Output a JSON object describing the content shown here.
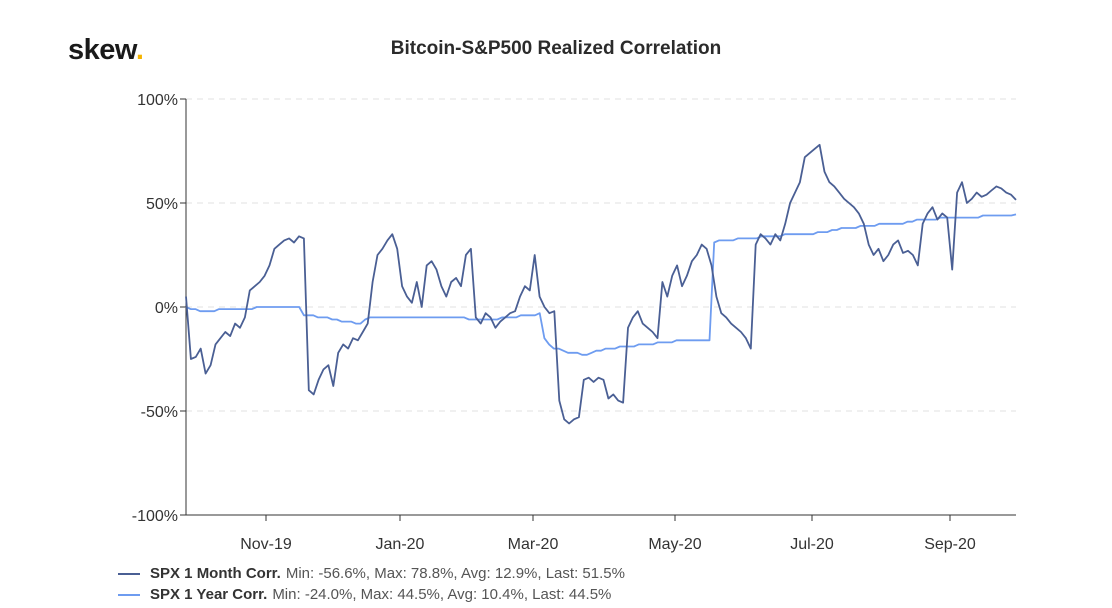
{
  "header": {
    "logo_text": "skew",
    "logo_dot": "."
  },
  "chart_data": {
    "type": "line",
    "title": "Bitcoin-S&P500 Realized Correlation",
    "ylim": [
      -100,
      100
    ],
    "y_ticks": [
      100,
      50,
      0,
      -50,
      -100
    ],
    "y_tick_labels": [
      "100%",
      "50%",
      "0%",
      "-50%",
      "-100%"
    ],
    "x_tick_labels": [
      "Nov-19",
      "Jan-20",
      "Mar-20",
      "May-20",
      "Jul-20",
      "Sep-20"
    ],
    "grid": true,
    "legend_position": "bottom-left",
    "series": [
      {
        "name": "SPX 1 Month Corr.",
        "color": "#4a5f94",
        "stats": "Min: -56.6%, Max: 78.8%, Avg: 12.9%, Last: 51.5%",
        "values": [
          5,
          -25,
          -24,
          -20,
          -32,
          -28,
          -18,
          -15,
          -12,
          -14,
          -8,
          -10,
          -5,
          8,
          10,
          12,
          15,
          20,
          28,
          30,
          32,
          33,
          31,
          34,
          33,
          -40,
          -42,
          -35,
          -30,
          -28,
          -38,
          -22,
          -18,
          -20,
          -15,
          -16,
          -12,
          -8,
          12,
          25,
          28,
          32,
          35,
          28,
          10,
          5,
          2,
          12,
          0,
          20,
          22,
          18,
          10,
          5,
          12,
          14,
          10,
          25,
          28,
          -5,
          -8,
          -3,
          -5,
          -10,
          -7,
          -5,
          -3,
          -2,
          5,
          10,
          8,
          25,
          5,
          0,
          -3,
          -2,
          -45,
          -54,
          -56,
          -54,
          -53,
          -35,
          -34,
          -36,
          -34,
          -35,
          -44,
          -42,
          -45,
          -46,
          -10,
          -5,
          -2,
          -8,
          -10,
          -12,
          -15,
          12,
          5,
          15,
          20,
          10,
          15,
          22,
          25,
          30,
          28,
          20,
          5,
          -3,
          -5,
          -8,
          -10,
          -12,
          -15,
          -20,
          30,
          35,
          33,
          30,
          35,
          32,
          40,
          50,
          55,
          60,
          72,
          74,
          76,
          78,
          65,
          60,
          58,
          55,
          52,
          50,
          48,
          45,
          40,
          30,
          25,
          28,
          22,
          25,
          30,
          32,
          26,
          27,
          25,
          20,
          40,
          45,
          48,
          42,
          45,
          43,
          18,
          55,
          60,
          50,
          52,
          55,
          53,
          54,
          56,
          58,
          57,
          55,
          54,
          51.5
        ]
      },
      {
        "name": "SPX 1 Year Corr.",
        "color": "#6e9cf0",
        "stats": "Min: -24.0%, Max: 44.5%, Avg: 10.4%, Last: 44.5%",
        "values": [
          0,
          -1,
          -1,
          -2,
          -2,
          -2,
          -2,
          -1,
          -1,
          -1,
          -1,
          -1,
          -1,
          -1,
          -1,
          0,
          0,
          0,
          0,
          0,
          0,
          0,
          0,
          0,
          0,
          -4,
          -4,
          -4,
          -5,
          -5,
          -5,
          -6,
          -6,
          -7,
          -7,
          -7,
          -8,
          -8,
          -6,
          -5,
          -5,
          -5,
          -5,
          -5,
          -5,
          -5,
          -5,
          -5,
          -5,
          -5,
          -5,
          -5,
          -5,
          -5,
          -5,
          -5,
          -5,
          -5,
          -5,
          -5,
          -6,
          -6,
          -6,
          -6,
          -6,
          -6,
          -6,
          -5,
          -5,
          -5,
          -5,
          -4,
          -4,
          -4,
          -4,
          -3,
          -15,
          -18,
          -20,
          -20,
          -21,
          -22,
          -22,
          -22,
          -23,
          -23,
          -22,
          -21,
          -21,
          -20,
          -20,
          -20,
          -19,
          -19,
          -19,
          -19,
          -18,
          -18,
          -18,
          -18,
          -17,
          -17,
          -17,
          -17,
          -16,
          -16,
          -16,
          -16,
          -16,
          -16,
          -16,
          -16,
          31,
          32,
          32,
          32,
          32,
          33,
          33,
          33,
          33,
          33,
          34,
          34,
          34,
          34,
          34,
          35,
          35,
          35,
          35,
          35,
          35,
          35,
          36,
          36,
          36,
          37,
          37,
          38,
          38,
          38,
          38,
          39,
          39,
          39,
          39,
          40,
          40,
          40,
          40,
          40,
          40,
          41,
          41,
          42,
          42,
          42,
          42,
          42,
          43,
          43,
          43,
          43,
          43,
          43,
          43,
          43,
          43,
          44,
          44,
          44,
          44,
          44,
          44,
          44,
          44.5
        ]
      }
    ]
  }
}
